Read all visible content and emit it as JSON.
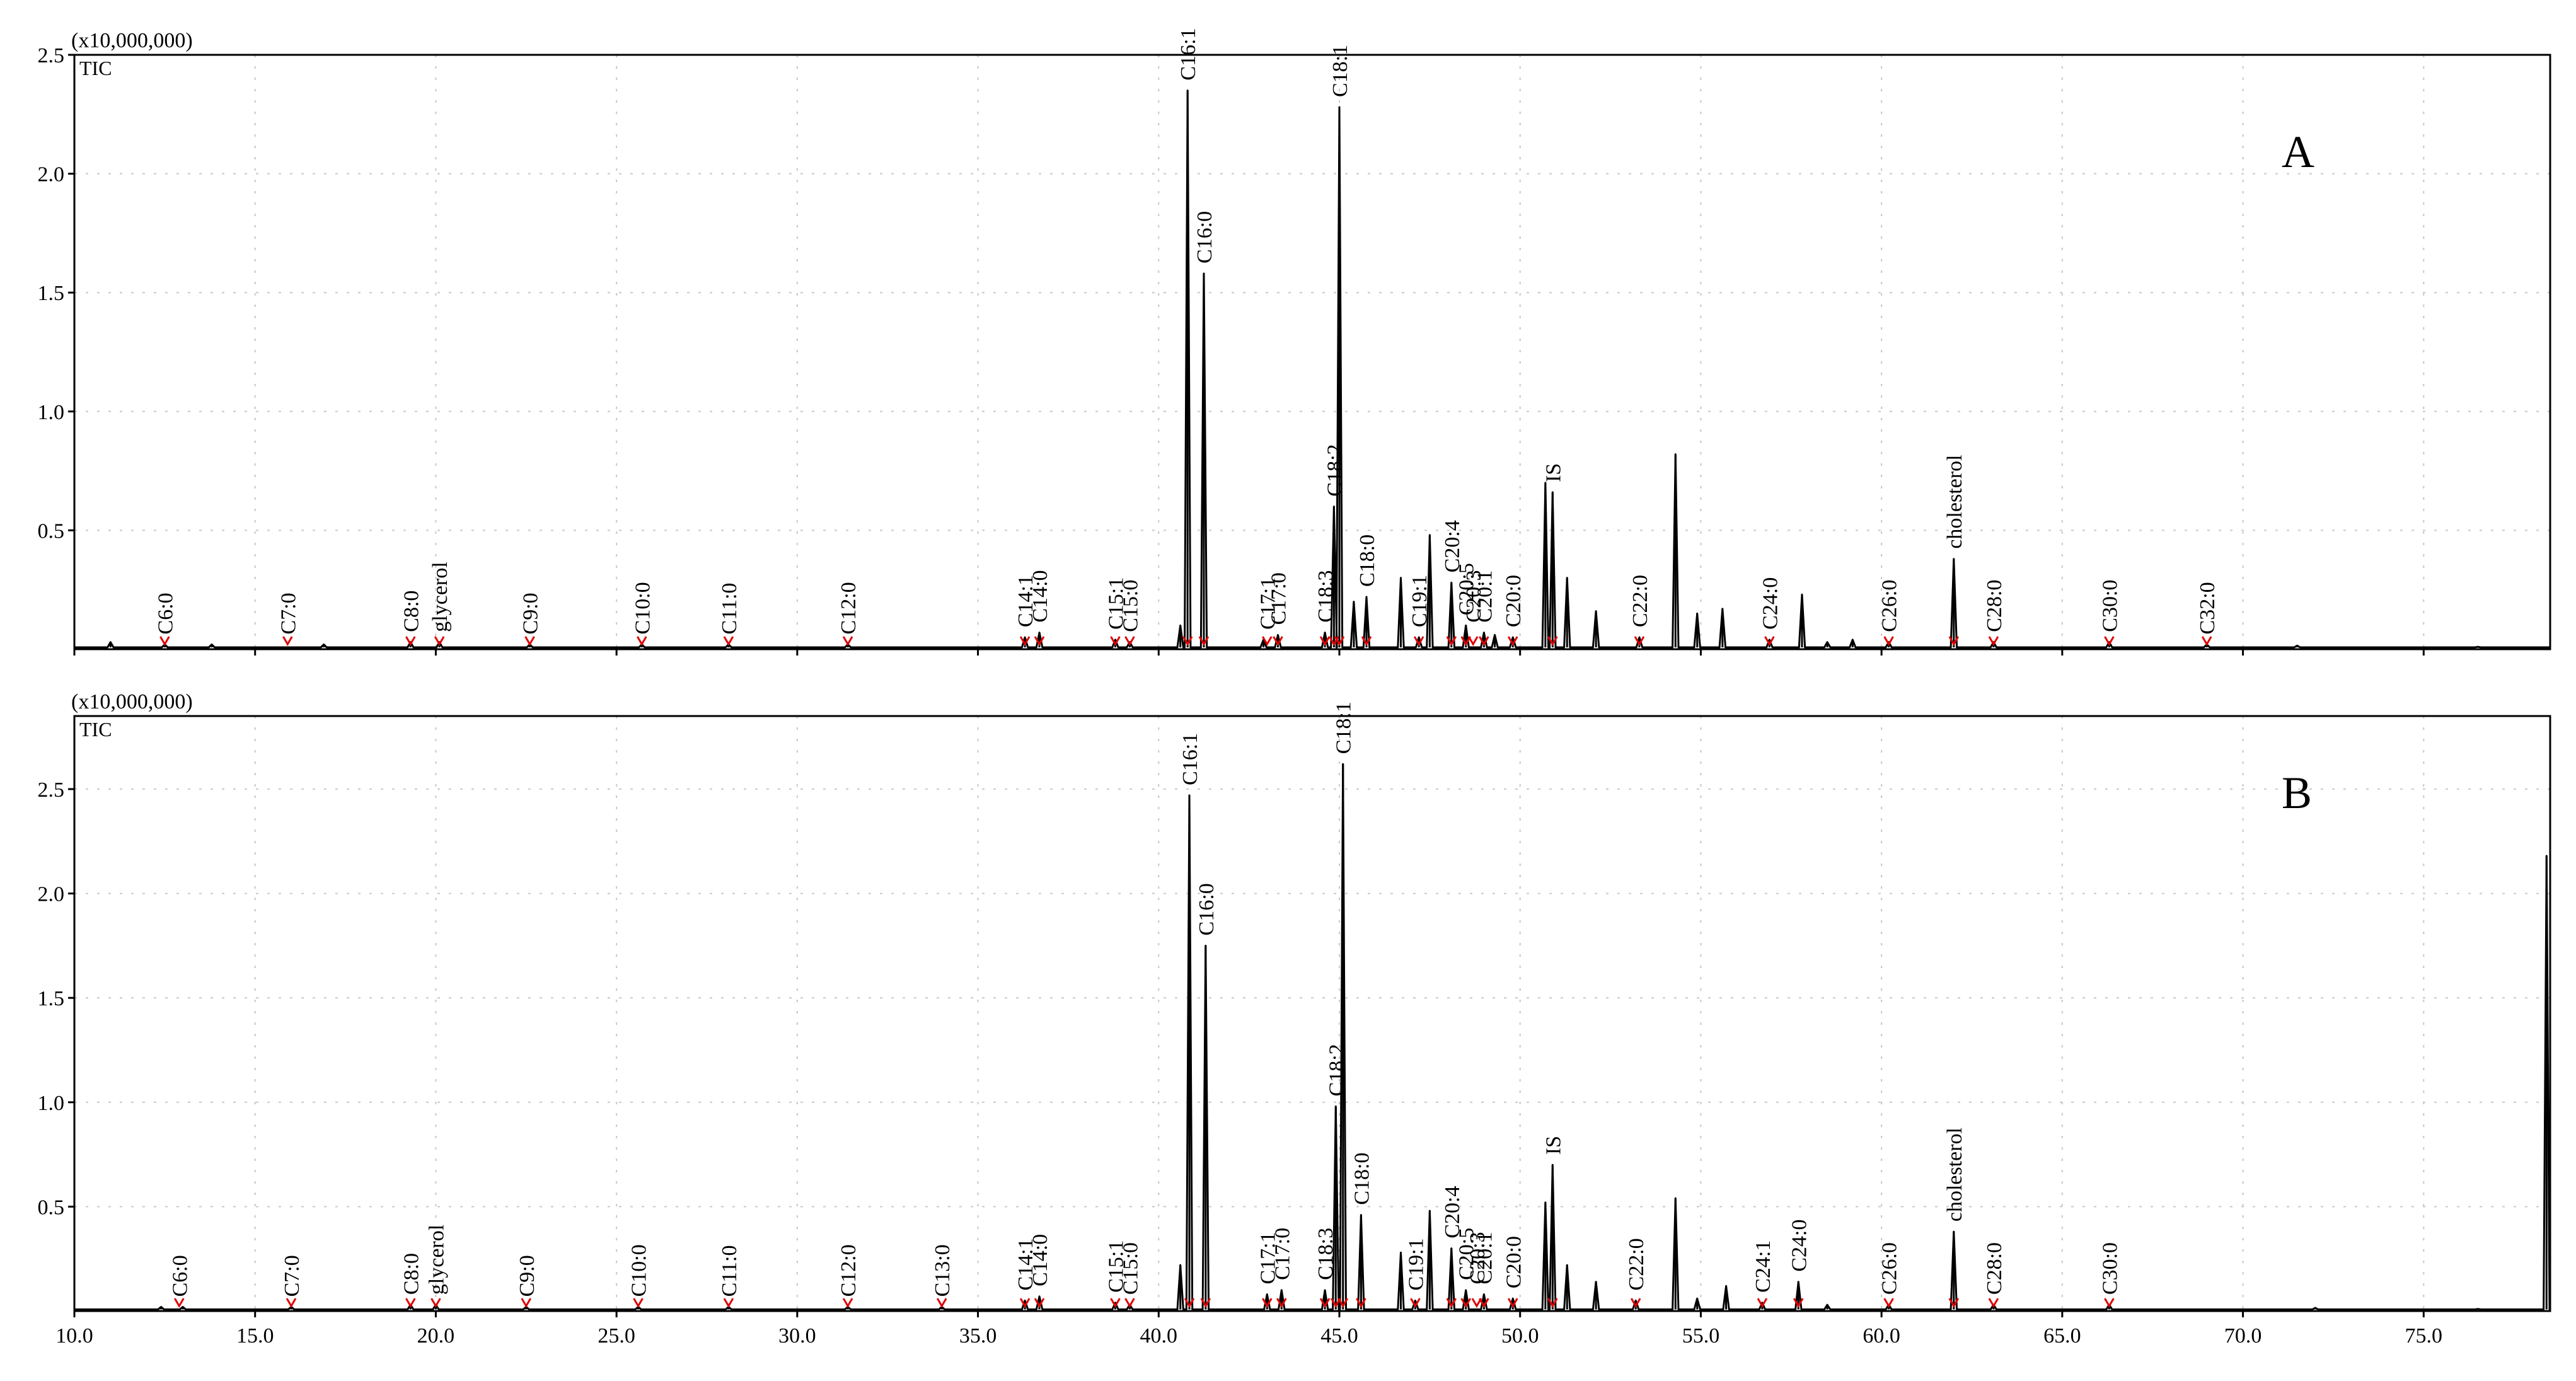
{
  "chart_data": [
    {
      "type": "line",
      "panel_label": "A",
      "scale_label": "(x10,000,000)",
      "trace_label": "TIC",
      "xlim": [
        10.0,
        78.5
      ],
      "ylim": [
        0,
        2.5
      ],
      "x_ticks": [
        10.0,
        15.0,
        20.0,
        25.0,
        30.0,
        35.0,
        40.0,
        45.0,
        50.0,
        55.0,
        60.0,
        65.0,
        70.0,
        75.0
      ],
      "x_tick_labels": [
        "10.0",
        "15.0",
        "20.0",
        "25.0",
        "30.0",
        "35.0",
        "40.0",
        "45.0",
        "50.0",
        "55.0",
        "60.0",
        "65.0",
        "70.0",
        "75.0"
      ],
      "y_ticks": [
        0.5,
        1.0,
        1.5,
        2.0,
        2.5
      ],
      "y_tick_labels": [
        "0.5",
        "1.0",
        "1.5",
        "2.0",
        "2.5"
      ],
      "grid": true,
      "peaks": [
        {
          "x": 11.0,
          "y": 0.03
        },
        {
          "x": 12.5,
          "y": 0.02
        },
        {
          "x": 13.8,
          "y": 0.02
        },
        {
          "x": 16.9,
          "y": 0.02
        },
        {
          "x": 19.3,
          "y": 0.03
        },
        {
          "x": 20.1,
          "y": 0.03
        },
        {
          "x": 22.6,
          "y": 0.02
        },
        {
          "x": 25.7,
          "y": 0.02
        },
        {
          "x": 28.1,
          "y": 0.02
        },
        {
          "x": 31.4,
          "y": 0.02
        },
        {
          "x": 36.3,
          "y": 0.05
        },
        {
          "x": 36.7,
          "y": 0.07
        },
        {
          "x": 38.8,
          "y": 0.04
        },
        {
          "x": 39.2,
          "y": 0.03
        },
        {
          "x": 40.6,
          "y": 0.1
        },
        {
          "x": 40.8,
          "y": 2.35
        },
        {
          "x": 41.25,
          "y": 1.58
        },
        {
          "x": 42.9,
          "y": 0.04
        },
        {
          "x": 43.3,
          "y": 0.06
        },
        {
          "x": 44.6,
          "y": 0.07
        },
        {
          "x": 44.85,
          "y": 0.6
        },
        {
          "x": 45.0,
          "y": 2.28
        },
        {
          "x": 45.4,
          "y": 0.2
        },
        {
          "x": 45.75,
          "y": 0.22
        },
        {
          "x": 46.7,
          "y": 0.3
        },
        {
          "x": 47.2,
          "y": 0.05
        },
        {
          "x": 47.5,
          "y": 0.48
        },
        {
          "x": 48.1,
          "y": 0.28
        },
        {
          "x": 48.5,
          "y": 0.1
        },
        {
          "x": 49.0,
          "y": 0.07
        },
        {
          "x": 49.3,
          "y": 0.06
        },
        {
          "x": 49.8,
          "y": 0.05
        },
        {
          "x": 50.7,
          "y": 0.7
        },
        {
          "x": 50.9,
          "y": 0.66
        },
        {
          "x": 51.3,
          "y": 0.3
        },
        {
          "x": 52.1,
          "y": 0.16
        },
        {
          "x": 53.3,
          "y": 0.05
        },
        {
          "x": 54.3,
          "y": 0.82
        },
        {
          "x": 54.9,
          "y": 0.15
        },
        {
          "x": 55.6,
          "y": 0.17
        },
        {
          "x": 56.9,
          "y": 0.04
        },
        {
          "x": 57.8,
          "y": 0.23
        },
        {
          "x": 58.5,
          "y": 0.03
        },
        {
          "x": 59.2,
          "y": 0.04
        },
        {
          "x": 60.2,
          "y": 0.03
        },
        {
          "x": 62.0,
          "y": 0.38
        },
        {
          "x": 63.1,
          "y": 0.03
        },
        {
          "x": 66.3,
          "y": 0.03
        },
        {
          "x": 69.0,
          "y": 0.02
        },
        {
          "x": 71.5,
          "y": 0.015
        },
        {
          "x": 76.5,
          "y": 0.01
        }
      ],
      "annotations": [
        {
          "text": "C6:0",
          "x": 12.5,
          "y": 0.02
        },
        {
          "text": "C7:0",
          "x": 15.9,
          "y": 0.02
        },
        {
          "text": "C8:0",
          "x": 19.3,
          "y": 0.03
        },
        {
          "text": "glycerol",
          "x": 20.1,
          "y": 0.03
        },
        {
          "text": "C9:0",
          "x": 22.6,
          "y": 0.02
        },
        {
          "text": "C10:0",
          "x": 25.7,
          "y": 0.02
        },
        {
          "text": "C11:0",
          "x": 28.1,
          "y": 0.02
        },
        {
          "text": "C12:0",
          "x": 31.4,
          "y": 0.02
        },
        {
          "text": "C14:1",
          "x": 36.3,
          "y": 0.05
        },
        {
          "text": "C14:0",
          "x": 36.7,
          "y": 0.07
        },
        {
          "text": "C15:1",
          "x": 38.8,
          "y": 0.04
        },
        {
          "text": "C15:0",
          "x": 39.2,
          "y": 0.03
        },
        {
          "text": "C16:1",
          "x": 40.8,
          "y": 2.35
        },
        {
          "text": "C16:0",
          "x": 41.25,
          "y": 1.58
        },
        {
          "text": "C17:1",
          "x": 43.0,
          "y": 0.04
        },
        {
          "text": "C17:0",
          "x": 43.3,
          "y": 0.06
        },
        {
          "text": "C18:3",
          "x": 44.6,
          "y": 0.07
        },
        {
          "text": "C18:2",
          "x": 44.85,
          "y": 0.6
        },
        {
          "text": "C18:1",
          "x": 45.0,
          "y": 2.28
        },
        {
          "text": "C18:0",
          "x": 45.75,
          "y": 0.22
        },
        {
          "text": "C19:1",
          "x": 47.2,
          "y": 0.05
        },
        {
          "text": "C20:4",
          "x": 48.1,
          "y": 0.28
        },
        {
          "text": "C20:5",
          "x": 48.5,
          "y": 0.1
        },
        {
          "text": "C20:3",
          "x": 48.7,
          "y": 0.07
        },
        {
          "text": "C20:1",
          "x": 49.0,
          "y": 0.07
        },
        {
          "text": "C20:0",
          "x": 49.8,
          "y": 0.05
        },
        {
          "text": "IS",
          "x": 50.9,
          "y": 0.66
        },
        {
          "text": "C22:0",
          "x": 53.3,
          "y": 0.05
        },
        {
          "text": "C24:0",
          "x": 56.9,
          "y": 0.04
        },
        {
          "text": "C26:0",
          "x": 60.2,
          "y": 0.03
        },
        {
          "text": "cholesterol",
          "x": 62.0,
          "y": 0.38
        },
        {
          "text": "C28:0",
          "x": 63.1,
          "y": 0.03
        },
        {
          "text": "C30:0",
          "x": 66.3,
          "y": 0.03
        },
        {
          "text": "C32:0",
          "x": 69.0,
          "y": 0.02
        }
      ]
    },
    {
      "type": "line",
      "panel_label": "B",
      "scale_label": "(x10,000,000)",
      "trace_label": "TIC",
      "xlim": [
        10.0,
        78.5
      ],
      "ylim": [
        0,
        2.85
      ],
      "x_ticks": [
        10.0,
        15.0,
        20.0,
        25.0,
        30.0,
        35.0,
        40.0,
        45.0,
        50.0,
        55.0,
        60.0,
        65.0,
        70.0,
        75.0
      ],
      "x_tick_labels": [
        "10.0",
        "15.0",
        "20.0",
        "25.0",
        "30.0",
        "35.0",
        "40.0",
        "45.0",
        "50.0",
        "55.0",
        "60.0",
        "65.0",
        "70.0",
        "75.0"
      ],
      "y_ticks": [
        0.5,
        1.0,
        1.5,
        2.0,
        2.5
      ],
      "y_tick_labels": [
        "0.5",
        "1.0",
        "1.5",
        "2.0",
        "2.5"
      ],
      "grid": true,
      "peaks": [
        {
          "x": 12.4,
          "y": 0.02
        },
        {
          "x": 13.0,
          "y": 0.02
        },
        {
          "x": 16.0,
          "y": 0.02
        },
        {
          "x": 19.3,
          "y": 0.03
        },
        {
          "x": 20.0,
          "y": 0.03
        },
        {
          "x": 22.5,
          "y": 0.02
        },
        {
          "x": 25.6,
          "y": 0.02
        },
        {
          "x": 28.1,
          "y": 0.02
        },
        {
          "x": 31.4,
          "y": 0.02
        },
        {
          "x": 34.0,
          "y": 0.02
        },
        {
          "x": 36.3,
          "y": 0.05
        },
        {
          "x": 36.7,
          "y": 0.07
        },
        {
          "x": 38.8,
          "y": 0.04
        },
        {
          "x": 39.2,
          "y": 0.03
        },
        {
          "x": 40.6,
          "y": 0.22
        },
        {
          "x": 40.85,
          "y": 2.47
        },
        {
          "x": 41.3,
          "y": 1.75
        },
        {
          "x": 43.0,
          "y": 0.08
        },
        {
          "x": 43.4,
          "y": 0.1
        },
        {
          "x": 44.6,
          "y": 0.1
        },
        {
          "x": 44.9,
          "y": 0.98
        },
        {
          "x": 45.1,
          "y": 2.62
        },
        {
          "x": 45.6,
          "y": 0.46
        },
        {
          "x": 46.7,
          "y": 0.28
        },
        {
          "x": 47.1,
          "y": 0.05
        },
        {
          "x": 47.5,
          "y": 0.48
        },
        {
          "x": 48.1,
          "y": 0.3
        },
        {
          "x": 48.5,
          "y": 0.1
        },
        {
          "x": 49.0,
          "y": 0.08
        },
        {
          "x": 49.8,
          "y": 0.06
        },
        {
          "x": 50.7,
          "y": 0.52
        },
        {
          "x": 50.9,
          "y": 0.7
        },
        {
          "x": 51.3,
          "y": 0.22
        },
        {
          "x": 52.1,
          "y": 0.14
        },
        {
          "x": 53.2,
          "y": 0.05
        },
        {
          "x": 54.3,
          "y": 0.54
        },
        {
          "x": 54.9,
          "y": 0.06
        },
        {
          "x": 55.7,
          "y": 0.12
        },
        {
          "x": 56.7,
          "y": 0.04
        },
        {
          "x": 57.7,
          "y": 0.14
        },
        {
          "x": 58.5,
          "y": 0.03
        },
        {
          "x": 60.2,
          "y": 0.03
        },
        {
          "x": 62.0,
          "y": 0.38
        },
        {
          "x": 63.1,
          "y": 0.03
        },
        {
          "x": 66.3,
          "y": 0.03
        },
        {
          "x": 72.0,
          "y": 0.015
        },
        {
          "x": 76.5,
          "y": 0.01
        },
        {
          "x": 78.4,
          "y": 2.18
        }
      ],
      "annotations": [
        {
          "text": "C6:0",
          "x": 12.9,
          "y": 0.02
        },
        {
          "text": "C7:0",
          "x": 16.0,
          "y": 0.02
        },
        {
          "text": "C8:0",
          "x": 19.3,
          "y": 0.03
        },
        {
          "text": "glycerol",
          "x": 20.0,
          "y": 0.03
        },
        {
          "text": "C9:0",
          "x": 22.5,
          "y": 0.02
        },
        {
          "text": "C10:0",
          "x": 25.6,
          "y": 0.02
        },
        {
          "text": "C11:0",
          "x": 28.1,
          "y": 0.02
        },
        {
          "text": "C12:0",
          "x": 31.4,
          "y": 0.02
        },
        {
          "text": "C13:0",
          "x": 34.0,
          "y": 0.02
        },
        {
          "text": "C14:1",
          "x": 36.3,
          "y": 0.05
        },
        {
          "text": "C14:0",
          "x": 36.7,
          "y": 0.07
        },
        {
          "text": "C15:1",
          "x": 38.8,
          "y": 0.04
        },
        {
          "text": "C15:0",
          "x": 39.2,
          "y": 0.03
        },
        {
          "text": "C16:1",
          "x": 40.85,
          "y": 2.47
        },
        {
          "text": "C16:0",
          "x": 41.3,
          "y": 1.75
        },
        {
          "text": "C17:1",
          "x": 43.0,
          "y": 0.08
        },
        {
          "text": "C17:0",
          "x": 43.4,
          "y": 0.1
        },
        {
          "text": "C18:3",
          "x": 44.6,
          "y": 0.1
        },
        {
          "text": "C18:2",
          "x": 44.9,
          "y": 0.98
        },
        {
          "text": "C18:1",
          "x": 45.1,
          "y": 2.62
        },
        {
          "text": "C18:0",
          "x": 45.6,
          "y": 0.46
        },
        {
          "text": "C19:1",
          "x": 47.1,
          "y": 0.05
        },
        {
          "text": "C20:4",
          "x": 48.1,
          "y": 0.3
        },
        {
          "text": "C20:5",
          "x": 48.5,
          "y": 0.1
        },
        {
          "text": "C20:3",
          "x": 48.8,
          "y": 0.08
        },
        {
          "text": "C20:1",
          "x": 49.0,
          "y": 0.08
        },
        {
          "text": "C20:0",
          "x": 49.8,
          "y": 0.06
        },
        {
          "text": "IS",
          "x": 50.9,
          "y": 0.7
        },
        {
          "text": "C22:0",
          "x": 53.2,
          "y": 0.05
        },
        {
          "text": "C24:1",
          "x": 56.7,
          "y": 0.04
        },
        {
          "text": "C24:0",
          "x": 57.7,
          "y": 0.14
        },
        {
          "text": "C26:0",
          "x": 60.2,
          "y": 0.03
        },
        {
          "text": "cholesterol",
          "x": 62.0,
          "y": 0.38
        },
        {
          "text": "C28:0",
          "x": 63.1,
          "y": 0.03
        },
        {
          "text": "C30:0",
          "x": 66.3,
          "y": 0.03
        }
      ]
    }
  ]
}
